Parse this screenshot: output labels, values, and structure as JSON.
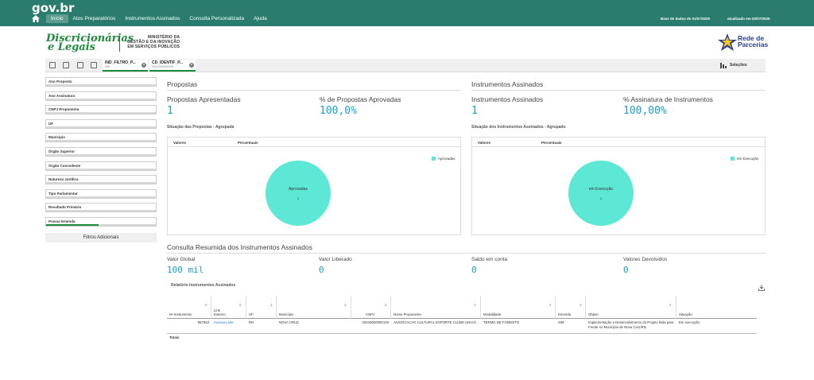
{
  "brand": "gov.br",
  "nav": [
    {
      "label": "Início",
      "active": true
    },
    {
      "label": "Atos Preparatórios",
      "active": false
    },
    {
      "label": "Instrumentos Assinados",
      "active": false
    },
    {
      "label": "Consulta Personalizada",
      "active": false
    },
    {
      "label": "Ajuda",
      "active": false
    }
  ],
  "status": {
    "base": "Base de dados de 01/07/2025",
    "updated": "atualizado em 02/07/2025"
  },
  "logo": {
    "line1": "Discricionárias",
    "line2": "e Legais",
    "ministry_l1": "MINISTÉRIO DA",
    "ministry_l2": "GESTÃO E DA INOVAÇÃO",
    "ministry_l3": "EM SERVIÇOS PÚBLICOS",
    "rede_l1": "Rede de",
    "rede_l2": "Parcerias"
  },
  "selections_bar": {
    "chips": [
      {
        "title": "IND_FILTRO_P...",
        "sub": "SIM"
      },
      {
        "title": "CD_IDENTIF_P...",
        "sub": "03419000000100"
      }
    ],
    "selections_label": "Seleções"
  },
  "filters": [
    "Ano Proposta",
    "Ano Assinatura",
    "CNPJ Proponente",
    "UF",
    "Município",
    "Órgão Superior",
    "Órgão Concedente",
    "Natureza Jurídica",
    "Tipo Parlamentar",
    "Resultado Primário",
    "Possui Emenda"
  ],
  "add_filters": "Filtros Adicionais",
  "propostas": {
    "title": "Propostas",
    "kpi1_label": "Propostas Apresentadas",
    "kpi1_value": "1",
    "kpi2_label": "% de Propostas Aprovadas",
    "kpi2_value": "100,0%",
    "chart_title": "Situação das Propostas - Agrupada",
    "col1": "Valores",
    "col2": "Percentuais",
    "slice_label": "Aprovadas",
    "slice_value": "1",
    "legend": "Aprovadas"
  },
  "instrumentos": {
    "title": "Instrumentos Assinados",
    "kpi1_label": "Instrumentos Assinados",
    "kpi1_value": "1",
    "kpi2_label": "% Assinatura de Instrumentos",
    "kpi2_value": "100,00%",
    "chart_title": "Situação dos Instrumentos Assinados - Agrupado",
    "col1": "Valores",
    "col2": "Percentuais",
    "slice_label": "em Execução",
    "slice_value": "1",
    "legend": "em Execução"
  },
  "resumo": {
    "title": "Consulta Resumida dos Instrumentos Assinados",
    "items": [
      {
        "label": "Valor Global",
        "value": "100 mil"
      },
      {
        "label": "Valor Liberado",
        "value": "0"
      },
      {
        "label": "Saldo em conta",
        "value": "0"
      },
      {
        "label": "Valores Devolvidos",
        "value": "0"
      }
    ]
  },
  "report": {
    "title": "Relatório Instrumentos Assinados",
    "headers": [
      "Nº Instrumento",
      "Link Externo",
      "UF",
      "Município",
      "CNPJ",
      "Nome Proponente",
      "Modalidade",
      "Emenda",
      "Objeto",
      "Situação"
    ],
    "row": [
      "957563",
      "Acesso Livre",
      "RN",
      "NOVA CRUZ",
      "03419000000100",
      "ASSOCIACAO CULTURAL ESPORTE CLUBE UNIAO",
      "TERMO DE FOMENTO",
      "SIM",
      "Implementação e Desenvolvimento do Projeto Bola para Frente no Município de Nova Cruz/RN",
      "Em execução"
    ],
    "totals": "Totais"
  },
  "colors": {
    "header": "#2a7d6e",
    "accent": "#1a9fc8",
    "pie": "#5ce8d4",
    "green": "#1e8a3b"
  },
  "chart_data": [
    {
      "type": "pie",
      "title": "Situação das Propostas - Agrupada",
      "categories": [
        "Aprovadas"
      ],
      "values": [
        1
      ],
      "legend": "right"
    },
    {
      "type": "pie",
      "title": "Situação dos Instrumentos Assinados - Agrupado",
      "categories": [
        "em Execução"
      ],
      "values": [
        1
      ],
      "legend": "right"
    }
  ]
}
